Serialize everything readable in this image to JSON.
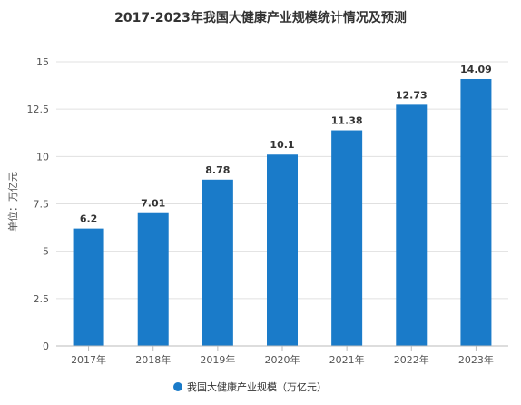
{
  "chart_data": {
    "type": "bar",
    "title": "2017-2023年我国大健康产业规模统计情况及预测",
    "ylabel": "单位：万亿元",
    "xlabel": "",
    "categories": [
      "2017年",
      "2018年",
      "2019年",
      "2020年",
      "2021年",
      "2022年",
      "2023年"
    ],
    "series": [
      {
        "name": "我国大健康产业规模（万亿元）",
        "values": [
          6.2,
          7.01,
          8.78,
          10.1,
          11.38,
          12.73,
          14.09
        ],
        "data_labels": [
          "6.2",
          "7.01",
          "8.78",
          "10.1",
          "11.38",
          "12.73",
          "14.09"
        ],
        "color": "#1a7bc9"
      }
    ],
    "ylim": [
      0,
      15
    ],
    "yticks": [
      0,
      2.5,
      5,
      7.5,
      10,
      12.5,
      15
    ],
    "ytick_labels": [
      "0",
      "2.5",
      "5",
      "7.5",
      "10",
      "12.5",
      "15"
    ],
    "grid": true,
    "legend_position": "bottom"
  }
}
